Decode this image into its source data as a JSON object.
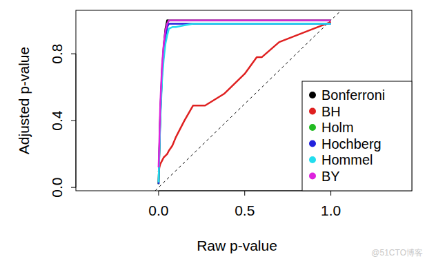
{
  "chart_data": {
    "type": "line",
    "x_label": "Raw p-value",
    "y_label": "Adjusted p-value",
    "x": [
      0,
      0.005,
      0.01,
      0.02,
      0.03,
      0.04,
      0.05,
      0.06,
      0.08,
      0.1,
      0.15,
      0.2,
      0.27,
      0.38,
      0.5,
      0.57,
      0.6,
      0.7,
      0.8,
      0.9,
      1.0
    ],
    "series": [
      {
        "name": "Bonferroni",
        "color": "#000000",
        "values": [
          0.02,
          0.25,
          0.45,
          0.7,
          0.85,
          0.95,
          1.0,
          1.0,
          1.0,
          1.0,
          1.0,
          1.0,
          1.0,
          1.0,
          1.0,
          1.0,
          1.0,
          1.0,
          1.0,
          1.0,
          1.0
        ]
      },
      {
        "name": "BH",
        "color": "#df2020",
        "values": [
          0.09,
          0.12,
          0.14,
          0.16,
          0.18,
          0.19,
          0.2,
          0.22,
          0.25,
          0.3,
          0.4,
          0.49,
          0.49,
          0.56,
          0.68,
          0.78,
          0.78,
          0.87,
          0.91,
          0.95,
          0.99
        ]
      },
      {
        "name": "Holm",
        "color": "#22bb22",
        "values": [
          0.02,
          0.24,
          0.43,
          0.68,
          0.82,
          0.92,
          0.98,
          1.0,
          1.0,
          1.0,
          1.0,
          1.0,
          1.0,
          1.0,
          1.0,
          1.0,
          1.0,
          1.0,
          1.0,
          1.0,
          1.0
        ]
      },
      {
        "name": "Hochberg",
        "color": "#2222dd",
        "values": [
          0.02,
          0.23,
          0.42,
          0.67,
          0.8,
          0.9,
          0.96,
          0.98,
          0.98,
          0.98,
          0.98,
          0.98,
          0.98,
          0.98,
          0.98,
          0.98,
          0.98,
          0.98,
          0.98,
          0.98,
          0.98
        ]
      },
      {
        "name": "Hommel",
        "color": "#22ddee",
        "values": [
          0.03,
          0.22,
          0.4,
          0.64,
          0.77,
          0.86,
          0.91,
          0.95,
          0.96,
          0.96,
          0.97,
          0.98,
          0.98,
          0.98,
          0.98,
          0.98,
          0.98,
          0.98,
          0.98,
          0.98,
          0.98
        ]
      },
      {
        "name": "BY",
        "color": "#dd22dd",
        "values": [
          0.12,
          0.3,
          0.5,
          0.73,
          0.86,
          0.94,
          0.98,
          1.0,
          1.0,
          1.0,
          1.0,
          1.0,
          1.0,
          1.0,
          1.0,
          1.0,
          1.0,
          1.0,
          1.0,
          1.0,
          1.0
        ]
      }
    ],
    "xlim": [
      -0.48,
      1.47
    ],
    "ylim": [
      -0.02,
      1.06
    ],
    "xticks": [
      {
        "value": 0,
        "label": "0.0"
      },
      {
        "value": 0.5,
        "label": "0.5"
      },
      {
        "value": 1,
        "label": "1.0"
      }
    ],
    "yticks": [
      {
        "value": 0,
        "label": "0.0"
      },
      {
        "value": 0.4,
        "label": "0.4"
      },
      {
        "value": 0.8,
        "label": "0.8"
      }
    ],
    "legend": "bottomright",
    "marker": "circle",
    "annotations": [
      "@51CTO博客"
    ]
  }
}
